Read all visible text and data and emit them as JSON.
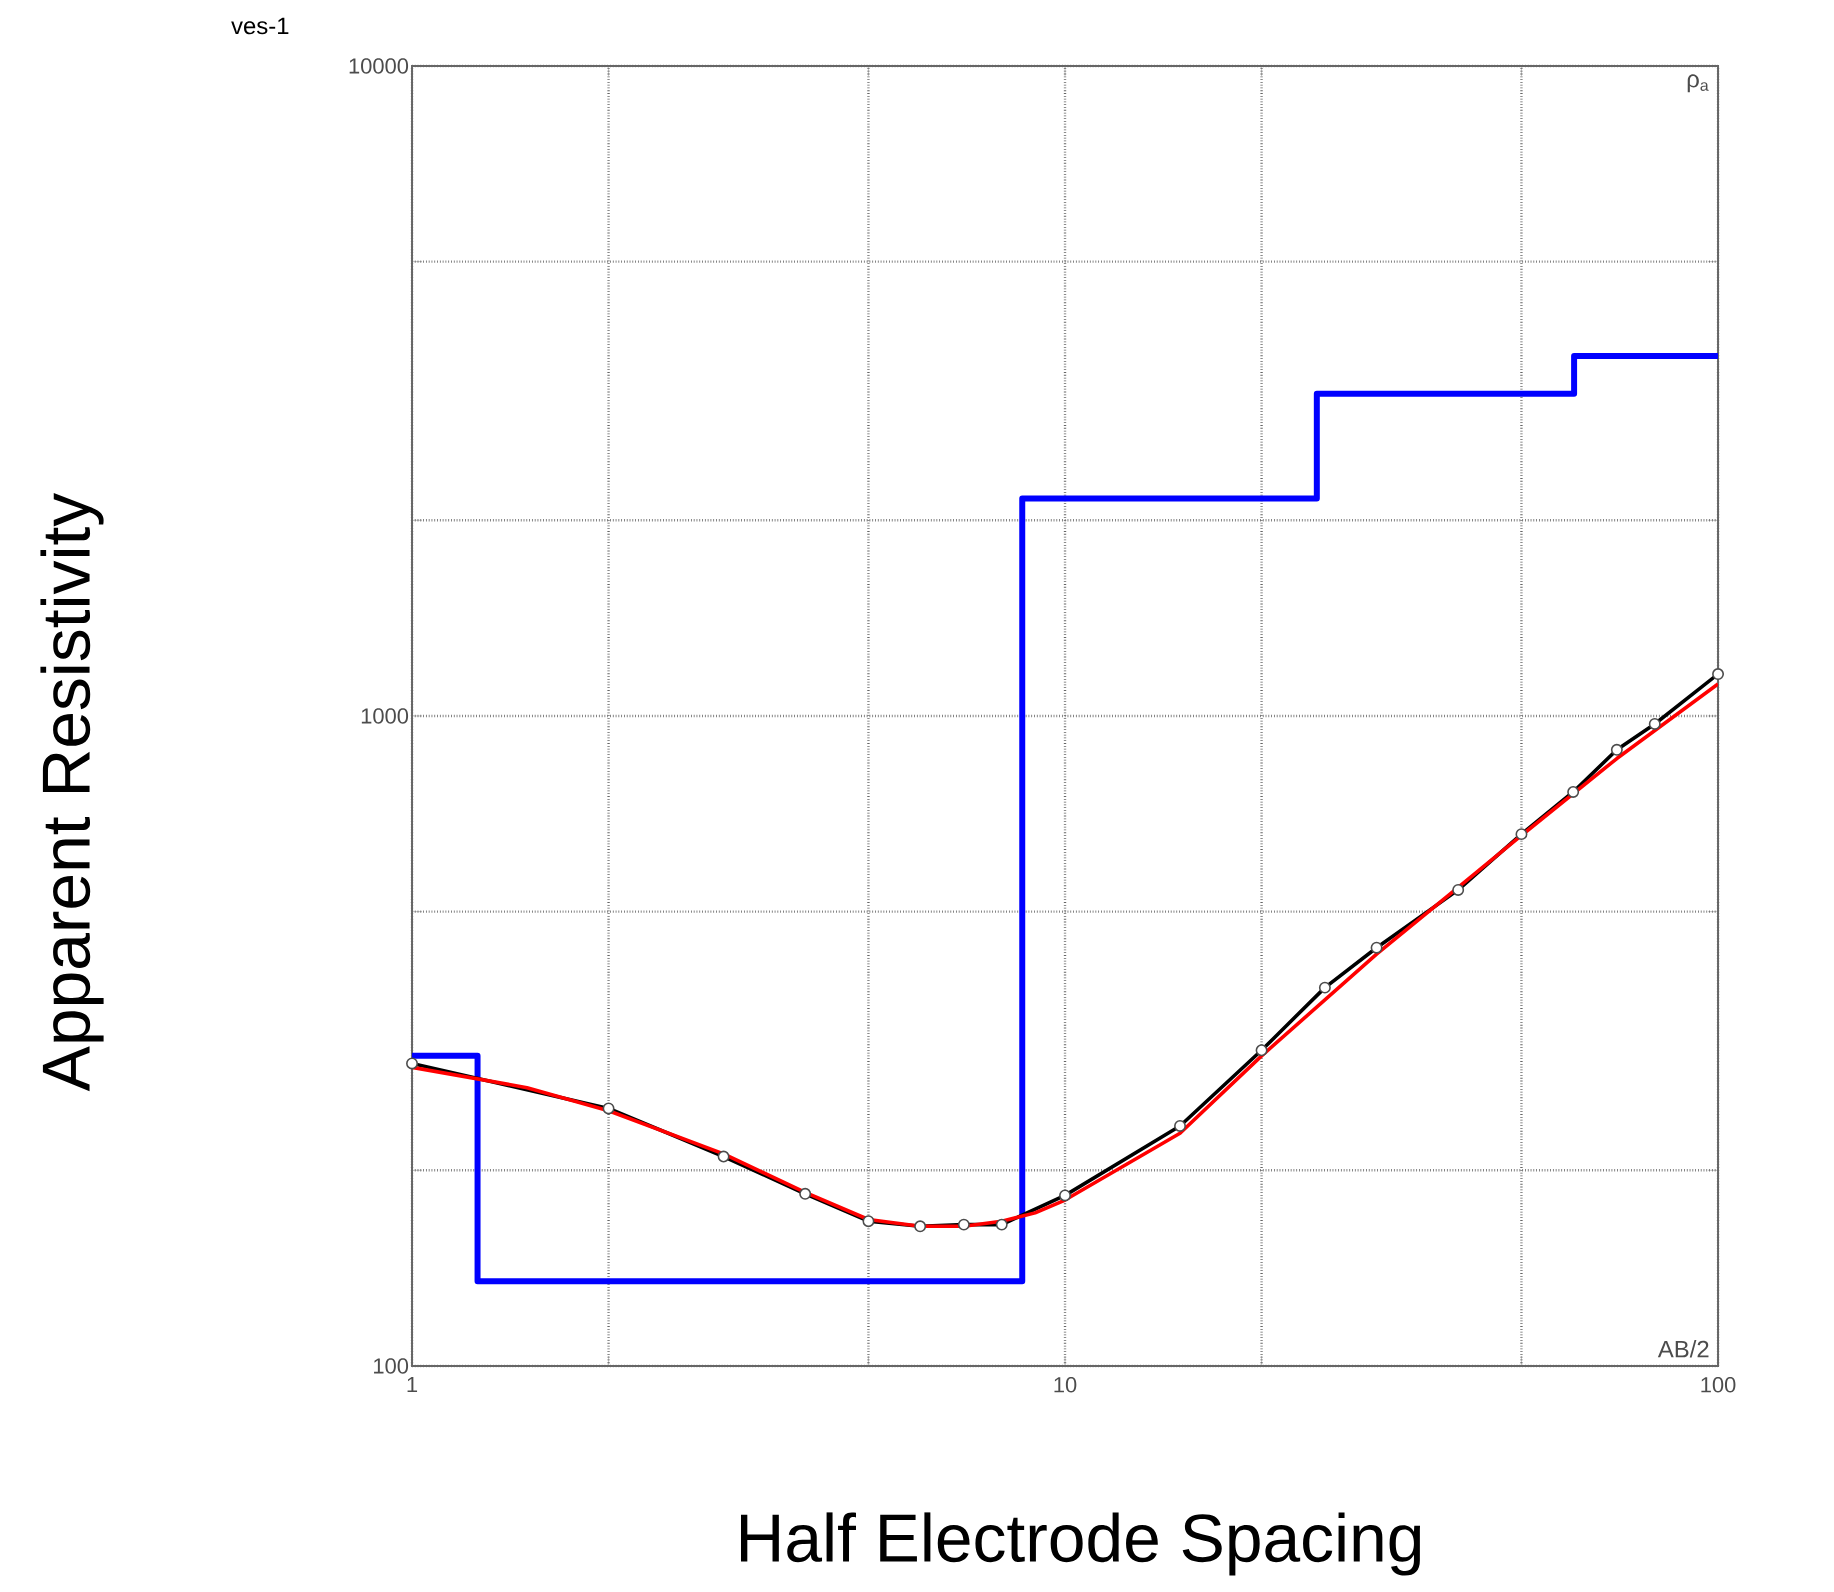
{
  "chart_data": {
    "type": "line",
    "title": "ves-1",
    "xlabel": "Half Electrode Spacing",
    "ylabel": "Apparent Resistivity",
    "annotations": [
      "ρ$_{a}$",
      "AB/2"
    ],
    "log": "xy",
    "grid": true,
    "xlim": [
      1,
      100
    ],
    "ylim": [
      100,
      10000
    ],
    "xticks": [
      1,
      {
        "value": 2,
        "label": null
      },
      {
        "value": 5,
        "label": null
      },
      10,
      {
        "value": 20,
        "label": null
      },
      {
        "value": 50,
        "label": null
      },
      100
    ],
    "yticks": [
      100,
      {
        "value": 200,
        "label": null
      },
      {
        "value": 500,
        "label": null
      },
      1000,
      {
        "value": 2000,
        "label": null
      },
      {
        "value": 5000,
        "label": null
      },
      10000
    ],
    "series": [
      {
        "type": "step",
        "color": "#0000ff",
        "x": [
          1,
          1.26,
          8.6,
          24.3,
          60.2,
          100
        ],
        "values": [
          300,
          135,
          2160,
          3130,
          3580,
          3580
        ]
      },
      {
        "color": "#000000",
        "marker": "circle",
        "x": [
          1,
          2,
          3,
          4,
          5,
          6,
          7,
          8,
          10,
          15,
          20,
          25,
          30,
          40,
          50,
          60,
          70,
          80,
          100
        ],
        "values": [
          292,
          249,
          210,
          184,
          167,
          164,
          165,
          165,
          183,
          234,
          306,
          382,
          440,
          540,
          658,
          764,
          887,
          972,
          1160
        ]
      },
      {
        "color": "#ff0000",
        "x": [
          1,
          1.5,
          2,
          3,
          4,
          5,
          6,
          7,
          8,
          9,
          10,
          15,
          20,
          30,
          40,
          50,
          70,
          100
        ],
        "values": [
          288,
          268,
          247,
          212,
          185,
          168,
          164,
          164,
          167,
          172,
          180,
          228,
          300,
          430,
          545,
          655,
          860,
          1120
        ]
      }
    ]
  }
}
